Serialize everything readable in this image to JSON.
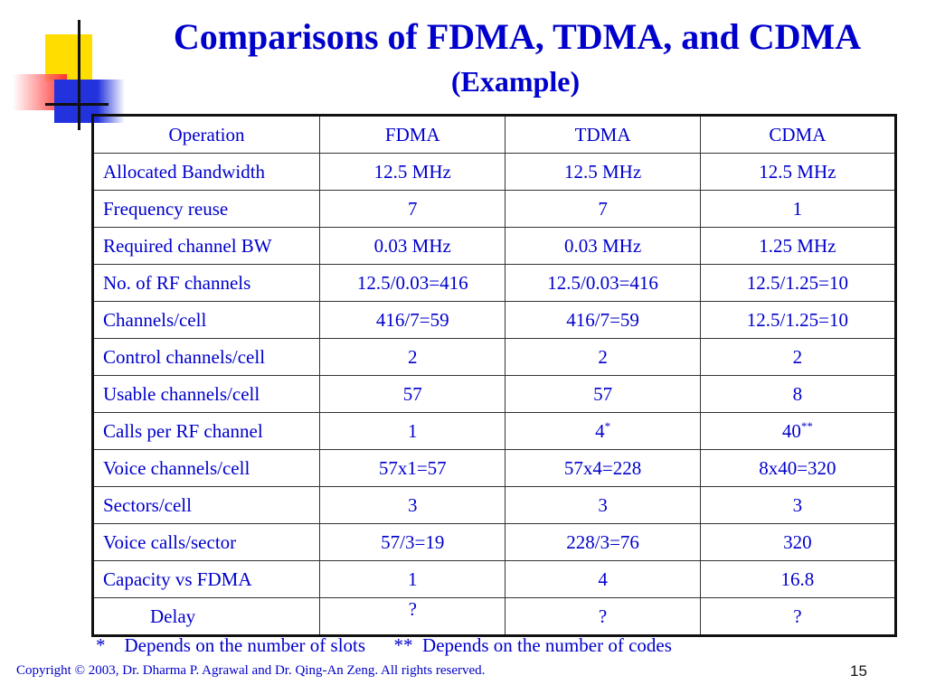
{
  "title": "Comparisons of FDMA, TDMA, and CDMA",
  "subtitle": "(Example)",
  "table": {
    "header": [
      "Operation",
      "FDMA",
      "TDMA",
      "CDMA"
    ],
    "rows": [
      [
        "Allocated Bandwidth",
        "12.5 MHz",
        "12.5 MHz",
        "12.5 MHz"
      ],
      [
        "Frequency reuse",
        "7",
        "7",
        "1"
      ],
      [
        "Required channel BW",
        "0.03 MHz",
        "0.03 MHz",
        "1.25 MHz"
      ],
      [
        "No. of RF channels",
        "12.5/0.03=416",
        "12.5/0.03=416",
        "12.5/1.25=10"
      ],
      [
        "Channels/cell",
        "416/7=59",
        "416/7=59",
        "12.5/1.25=10"
      ],
      [
        "Control channels/cell",
        "2",
        "2",
        "2"
      ],
      [
        "Usable channels/cell",
        "57",
        "57",
        "8"
      ],
      [
        "Calls per RF channel",
        "1",
        "4",
        "40"
      ],
      [
        "Voice channels/cell",
        "57x1=57",
        "57x4=228",
        "8x40=320"
      ],
      [
        "Sectors/cell",
        "3",
        "3",
        "3"
      ],
      [
        "Voice calls/sector",
        "57/3=19",
        "228/3=76",
        "320"
      ],
      [
        "Capacity vs FDMA",
        "1",
        "4",
        "16.8"
      ],
      [
        "Delay",
        "?",
        "?",
        "?"
      ]
    ],
    "tdma_calls_mark": "*",
    "cdma_calls_mark": "**"
  },
  "footnote": "*    Depends on the number of slots      **  Depends on the number of codes",
  "copyright": "Copyright © 2003, Dr. Dharma P. Agrawal and Dr. Qing-An Zeng. All rights reserved.",
  "page_number": "15"
}
